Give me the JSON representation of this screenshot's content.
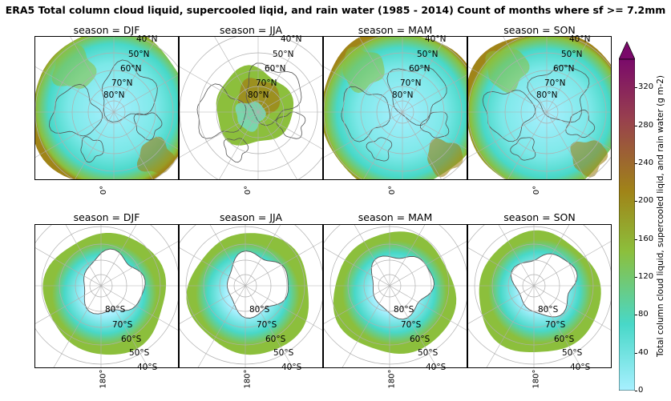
{
  "figure": {
    "title": "ERA5 Total column cloud liquid, supercooled liqid, and rain water (1985 - 2014) Count of months where sf >= 7.2mm"
  },
  "rows": [
    {
      "hemisphere": "north",
      "lat_labels": [
        "40°N",
        "50°N",
        "60°N",
        "70°N",
        "80°N"
      ],
      "lon_label": "0°",
      "panels": [
        {
          "title": "season = DJF",
          "coverage": "wide"
        },
        {
          "title": "season = JJA",
          "coverage": "small"
        },
        {
          "title": "season = MAM",
          "coverage": "wide"
        },
        {
          "title": "season = SON",
          "coverage": "wide"
        }
      ]
    },
    {
      "hemisphere": "south",
      "lat_labels": [
        "80°S",
        "70°S",
        "60°S",
        "50°S",
        "40°S"
      ],
      "lon_label": "180°",
      "panels": [
        {
          "title": "season = DJF",
          "coverage": "ring"
        },
        {
          "title": "season = JJA",
          "coverage": "ring"
        },
        {
          "title": "season = MAM",
          "coverage": "ring"
        },
        {
          "title": "season = SON",
          "coverage": "ring"
        }
      ]
    }
  ],
  "colorbar": {
    "label": "Total column cloud liquid, supercooled liqid, and rain water (g m-2)",
    "ticks": [
      "0",
      "40",
      "80",
      "120",
      "160",
      "200",
      "240",
      "280",
      "320"
    ],
    "range": [
      0,
      350
    ],
    "extend": "max",
    "colors": {
      "low": "#a8f0ff",
      "mid_low": "#48d8c8",
      "mid": "#8cbf3c",
      "mid_high": "#a08418",
      "high": "#98404e",
      "top": "#7a0a6a"
    }
  },
  "colors": {
    "land_outline": "#555555",
    "graticule": "#b0b0b0"
  }
}
